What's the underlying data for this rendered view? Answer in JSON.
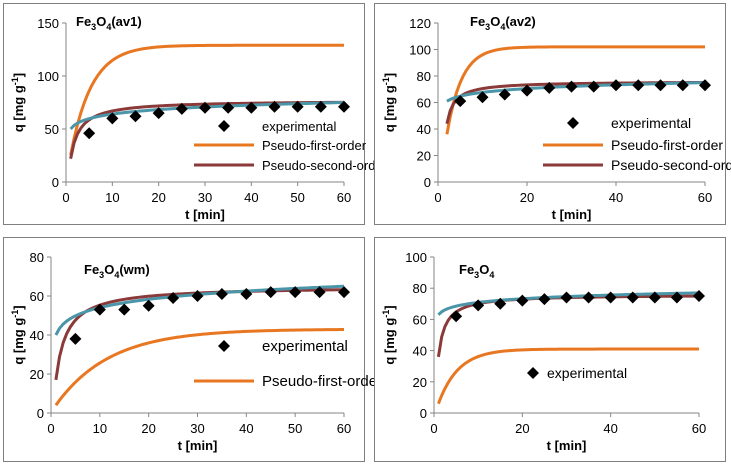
{
  "colors": {
    "experimental": "#000000",
    "pfo": "#e87722",
    "pso": "#8b3a3a",
    "elovich": "#4a95a8"
  },
  "chart_data": [
    {
      "type": "line",
      "title": "Fe3O4(av1)",
      "title_parts": {
        "main": "Fe",
        "sub1": "3",
        "mid": "O",
        "sub2": "4",
        "suffix": "(av1)"
      },
      "xlabel": "t [min]",
      "ylabel": "q [mg g-1]",
      "ylabel_parts": {
        "main": "q [mg g",
        "sup": "-1",
        "end": "]"
      },
      "xlim": [
        0,
        60
      ],
      "ylim": [
        0,
        150
      ],
      "xticks": [
        0,
        10,
        20,
        30,
        40,
        50,
        60
      ],
      "yticks": [
        0,
        50,
        100,
        150
      ],
      "legend": [
        "experimental",
        "Pseudo-first-order",
        "Pseudo-second-order"
      ],
      "series": [
        {
          "name": "experimental",
          "kind": "marker",
          "x": [
            5,
            10,
            15,
            20,
            25,
            30,
            35,
            40,
            45,
            50,
            55,
            60
          ],
          "y": [
            46,
            60,
            62,
            65,
            69,
            70,
            70,
            70,
            71,
            71,
            71,
            71
          ]
        },
        {
          "name": "Pseudo-first-order",
          "kind": "pfo",
          "qe": 129,
          "k": 0.22
        },
        {
          "name": "Pseudo-second-order",
          "kind": "pso",
          "x0": 1,
          "y0": 22,
          "qe": 77,
          "k": 0.25
        },
        {
          "kind": "elovich",
          "x0": 1,
          "y0": 50,
          "x1": 60,
          "y1": 75
        }
      ]
    },
    {
      "type": "line",
      "title": "Fe3O4(av2)",
      "title_parts": {
        "main": "Fe",
        "sub1": "3",
        "mid": "O",
        "sub2": "4",
        "suffix": "(av2)"
      },
      "xlabel": "t [min]",
      "ylabel": "q [mg g-1]",
      "ylabel_parts": {
        "main": "q [mg g",
        "sup": "-1",
        "end": "]"
      },
      "xlim": [
        0,
        60
      ],
      "ylim": [
        0,
        120
      ],
      "xticks": [
        0,
        20,
        40,
        60
      ],
      "yticks": [
        0,
        20,
        40,
        60,
        80,
        100,
        120
      ],
      "legend": [
        "experimental",
        "Pseudo-first-order",
        "Pseudo-second-order"
      ],
      "series": [
        {
          "name": "experimental",
          "kind": "marker",
          "x": [
            5,
            10,
            15,
            20,
            25,
            30,
            35,
            40,
            45,
            50,
            55,
            60
          ],
          "y": [
            61,
            64,
            66,
            69,
            71,
            72,
            72,
            73,
            73,
            73,
            73,
            73
          ]
        },
        {
          "name": "Pseudo-first-order",
          "kind": "pfo",
          "x0": 2,
          "y0": 36,
          "qe": 102,
          "k": 0.3
        },
        {
          "name": "Pseudo-second-order",
          "kind": "pso",
          "x0": 2,
          "y0": 44,
          "qe": 76,
          "k": 0.3
        },
        {
          "kind": "elovich",
          "x0": 2,
          "y0": 61,
          "x1": 60,
          "y1": 75
        }
      ]
    },
    {
      "type": "line",
      "title": "Fe3O4(wm)",
      "title_parts": {
        "main": "Fe",
        "sub1": "3",
        "mid": "O",
        "sub2": "4",
        "suffix": "(wm)"
      },
      "xlabel": "t [min]",
      "ylabel": "q [mg g-1]",
      "ylabel_parts": {
        "main": "q [mg g",
        "sup": "-1",
        "end": "]"
      },
      "xlim": [
        0,
        60
      ],
      "ylim": [
        0,
        80
      ],
      "xticks": [
        0,
        10,
        20,
        30,
        40,
        50,
        60
      ],
      "yticks": [
        0,
        20,
        40,
        60,
        80
      ],
      "legend": [
        "experimental",
        "Pseudo-first-order"
      ],
      "series": [
        {
          "name": "experimental",
          "kind": "marker",
          "x": [
            5,
            10,
            15,
            20,
            25,
            30,
            35,
            40,
            45,
            50,
            55,
            60
          ],
          "y": [
            38,
            53,
            53,
            55,
            59,
            60,
            61,
            61,
            62,
            62,
            62,
            62
          ]
        },
        {
          "name": "Pseudo-first-order",
          "kind": "pfo",
          "x0": 1,
          "y0": 4,
          "qe": 43,
          "k": 0.09
        },
        {
          "name": "Pseudo-second-order",
          "kind": "pso",
          "x0": 1,
          "y0": 17,
          "qe": 65,
          "k": 0.22
        },
        {
          "kind": "elovich",
          "x0": 1,
          "y0": 40,
          "x1": 60,
          "y1": 65
        }
      ]
    },
    {
      "type": "line",
      "title": "Fe3O4",
      "title_parts": {
        "main": "Fe",
        "sub1": "3",
        "mid": "O",
        "sub2": "4",
        "suffix": ""
      },
      "xlabel": "t [min]",
      "ylabel": "q [mg g-1]",
      "ylabel_parts": {
        "main": "q [mg g",
        "sup": "-1",
        "end": "]"
      },
      "xlim": [
        0,
        60
      ],
      "ylim": [
        0,
        100
      ],
      "xticks": [
        0,
        20,
        40,
        60
      ],
      "yticks": [
        0,
        20,
        40,
        60,
        80,
        100
      ],
      "legend": [
        "experimental"
      ],
      "series": [
        {
          "name": "experimental",
          "kind": "marker",
          "x": [
            5,
            10,
            15,
            20,
            25,
            30,
            35,
            40,
            45,
            50,
            55,
            60
          ],
          "y": [
            62,
            69,
            70,
            72,
            73,
            74,
            74,
            74,
            74,
            74,
            74,
            75
          ]
        },
        {
          "name": "Pseudo-first-order",
          "kind": "pfo",
          "x0": 1,
          "y0": 6,
          "qe": 41,
          "k": 0.22
        },
        {
          "name": "Pseudo-second-order",
          "kind": "pso",
          "x0": 1,
          "y0": 36,
          "qe": 76,
          "k": 0.32
        },
        {
          "kind": "elovich",
          "x0": 1,
          "y0": 63,
          "x1": 60,
          "y1": 77
        }
      ]
    }
  ]
}
